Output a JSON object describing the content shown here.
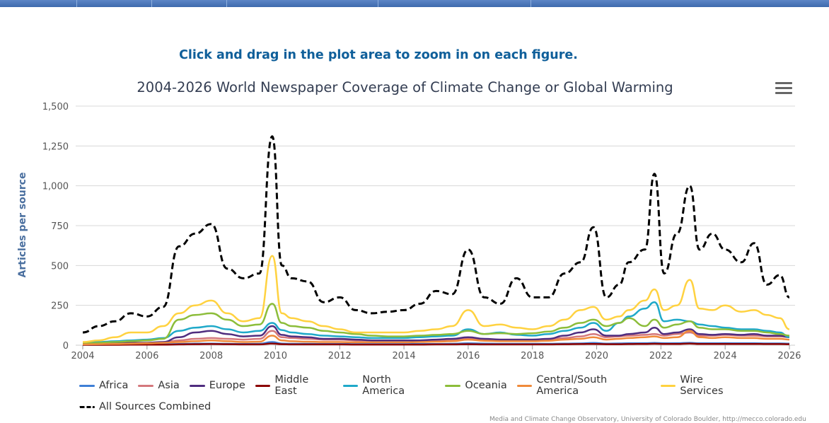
{
  "instruction": "Click and drag in the plot area to zoom in on each figure.",
  "credits": "Media and Climate Change Observatory, University of Colorado Boulder, http://mecco.colorado.edu",
  "chart_data": {
    "type": "line",
    "title": "2004-2026 World Newspaper Coverage of Climate Change or Global Warming",
    "xlabel": "",
    "ylabel": "Articles per source",
    "xlim": [
      2004,
      2026
    ],
    "ylim": [
      0,
      1500
    ],
    "x_ticks": [
      "2004",
      "2006",
      "2008",
      "2010",
      "2012",
      "2014",
      "2016",
      "2018",
      "2020",
      "2022",
      "2024",
      "2026"
    ],
    "y_ticks": [
      "0",
      "250",
      "500",
      "750",
      "1,000",
      "1,250",
      "1,500"
    ],
    "x": [
      2004.0,
      2004.5,
      2005.0,
      2005.5,
      2006.0,
      2006.5,
      2007.0,
      2007.5,
      2008.0,
      2008.5,
      2009.0,
      2009.5,
      2009.9,
      2010.2,
      2010.5,
      2011.0,
      2011.5,
      2012.0,
      2012.5,
      2013.0,
      2013.5,
      2014.0,
      2014.5,
      2015.0,
      2015.5,
      2016.0,
      2016.5,
      2017.0,
      2017.5,
      2018.0,
      2018.5,
      2019.0,
      2019.5,
      2019.9,
      2020.3,
      2020.7,
      2021.0,
      2021.5,
      2021.8,
      2022.1,
      2022.5,
      2022.9,
      2023.2,
      2023.6,
      2024.0,
      2024.5,
      2024.9,
      2025.3,
      2025.7,
      2026.0
    ],
    "series": [
      {
        "name": "Africa",
        "color": "#3f7fd6",
        "dashed": false,
        "values": [
          2,
          2,
          3,
          3,
          4,
          5,
          8,
          10,
          10,
          9,
          8,
          9,
          20,
          10,
          9,
          9,
          8,
          8,
          7,
          7,
          7,
          7,
          8,
          8,
          9,
          12,
          10,
          9,
          9,
          9,
          9,
          10,
          11,
          14,
          10,
          11,
          12,
          13,
          14,
          12,
          13,
          15,
          12,
          12,
          13,
          12,
          12,
          11,
          11,
          10
        ]
      },
      {
        "name": "Asia",
        "color": "#d4787c",
        "dashed": false,
        "values": [
          10,
          10,
          12,
          14,
          15,
          18,
          30,
          40,
          45,
          40,
          35,
          40,
          90,
          50,
          45,
          40,
          35,
          35,
          30,
          30,
          30,
          30,
          30,
          32,
          35,
          40,
          35,
          35,
          35,
          35,
          38,
          45,
          55,
          70,
          50,
          55,
          60,
          65,
          70,
          60,
          70,
          80,
          60,
          60,
          65,
          60,
          60,
          55,
          55,
          50
        ]
      },
      {
        "name": "Europe",
        "color": "#4f2d7f",
        "dashed": false,
        "values": [
          8,
          10,
          12,
          15,
          15,
          20,
          50,
          80,
          90,
          70,
          55,
          60,
          120,
          65,
          55,
          50,
          40,
          40,
          35,
          30,
          30,
          30,
          30,
          35,
          40,
          50,
          40,
          35,
          35,
          35,
          40,
          60,
          80,
          100,
          60,
          60,
          70,
          80,
          110,
          70,
          80,
          100,
          70,
          65,
          70,
          65,
          70,
          60,
          60,
          50
        ]
      },
      {
        "name": "Middle East",
        "color": "#8b0000",
        "dashed": false,
        "values": [
          2,
          2,
          2,
          3,
          3,
          3,
          5,
          6,
          7,
          6,
          5,
          5,
          10,
          6,
          5,
          5,
          5,
          5,
          4,
          4,
          4,
          4,
          4,
          5,
          5,
          6,
          5,
          5,
          5,
          5,
          5,
          6,
          7,
          8,
          6,
          6,
          7,
          8,
          9,
          8,
          8,
          10,
          8,
          8,
          8,
          8,
          8,
          7,
          7,
          6
        ]
      },
      {
        "name": "North America",
        "color": "#1fa9c9",
        "dashed": false,
        "values": [
          15,
          20,
          25,
          30,
          35,
          45,
          90,
          110,
          120,
          100,
          80,
          90,
          140,
          95,
          80,
          70,
          60,
          55,
          50,
          45,
          45,
          45,
          50,
          55,
          60,
          100,
          70,
          80,
          65,
          60,
          70,
          90,
          110,
          140,
          90,
          140,
          180,
          230,
          270,
          150,
          160,
          150,
          130,
          120,
          110,
          100,
          100,
          90,
          80,
          50
        ]
      },
      {
        "name": "Oceania",
        "color": "#8cbd3a",
        "dashed": false,
        "values": [
          10,
          15,
          20,
          25,
          30,
          40,
          160,
          190,
          200,
          160,
          120,
          130,
          260,
          140,
          120,
          110,
          90,
          80,
          70,
          60,
          55,
          55,
          60,
          65,
          70,
          90,
          70,
          75,
          70,
          75,
          85,
          110,
          140,
          160,
          120,
          140,
          170,
          120,
          160,
          110,
          130,
          150,
          110,
          100,
          100,
          90,
          90,
          80,
          70,
          60
        ]
      },
      {
        "name": "Central/South America",
        "color": "#f08a3a",
        "dashed": false,
        "values": [
          5,
          6,
          8,
          10,
          12,
          15,
          20,
          25,
          30,
          25,
          20,
          22,
          60,
          30,
          25,
          22,
          20,
          20,
          18,
          18,
          18,
          18,
          20,
          22,
          25,
          35,
          28,
          25,
          25,
          25,
          28,
          35,
          40,
          50,
          35,
          40,
          45,
          50,
          55,
          45,
          50,
          90,
          50,
          45,
          50,
          45,
          45,
          40,
          40,
          35
        ]
      },
      {
        "name": "Wire Services",
        "color": "#ffd240",
        "dashed": false,
        "values": [
          20,
          30,
          50,
          80,
          80,
          120,
          200,
          250,
          280,
          200,
          150,
          170,
          560,
          200,
          170,
          150,
          120,
          100,
          80,
          80,
          80,
          80,
          90,
          100,
          120,
          220,
          120,
          130,
          110,
          100,
          120,
          160,
          220,
          240,
          160,
          180,
          220,
          280,
          350,
          220,
          250,
          410,
          230,
          220,
          250,
          210,
          220,
          190,
          170,
          100
        ]
      },
      {
        "name": "All Sources Combined",
        "color": "#000000",
        "dashed": true,
        "values": [
          80,
          120,
          150,
          200,
          180,
          240,
          620,
          700,
          760,
          480,
          420,
          450,
          1310,
          500,
          420,
          400,
          270,
          300,
          220,
          200,
          210,
          220,
          260,
          340,
          320,
          600,
          300,
          260,
          420,
          300,
          300,
          450,
          520,
          740,
          300,
          380,
          520,
          600,
          1075,
          450,
          700,
          1000,
          600,
          700,
          600,
          520,
          640,
          380,
          440,
          300
        ]
      }
    ]
  }
}
